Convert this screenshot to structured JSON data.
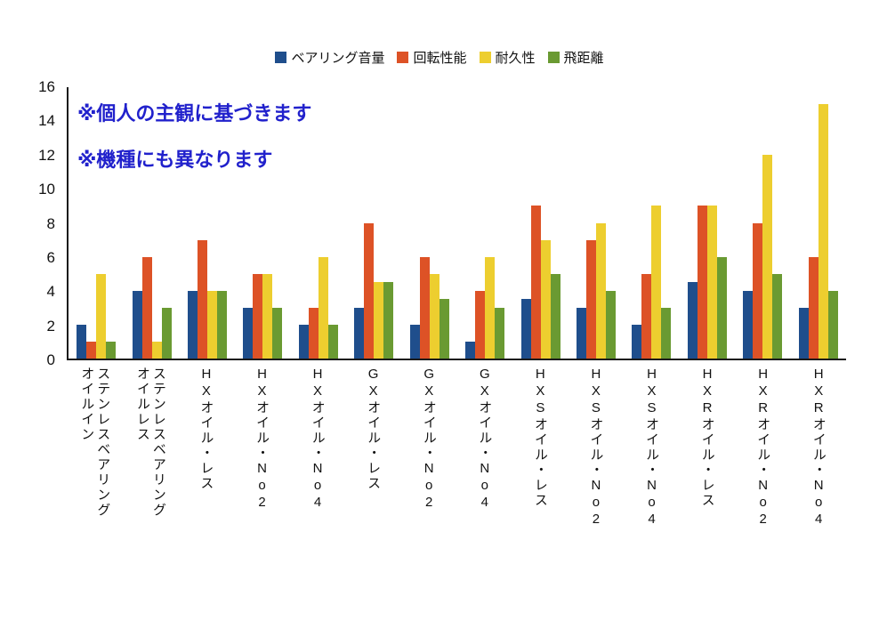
{
  "annotations": {
    "note1": "※個人の主観に基づきます",
    "note2": "※機種にも異なります"
  },
  "chart_data": {
    "type": "bar",
    "title": "",
    "xlabel": "",
    "ylabel": "",
    "ylim": [
      0,
      16
    ],
    "yticks": [
      0,
      2,
      4,
      6,
      8,
      10,
      12,
      14,
      16
    ],
    "grid": false,
    "legend_position": "top",
    "categories": [
      "オイルイン\nステンレスベアリング",
      "オイルレス\nステンレスベアリング",
      "HXオイル・レス",
      "HXオイル・No2",
      "HXオイル・No4",
      "GXオイル・レス",
      "GXオイル・No2",
      "GXオイル・No4",
      "HXSオイル・レス",
      "HXSオイル・No2",
      "HXSオイル・No4",
      "HXRオイル・レス",
      "HXRオイル・No2",
      "HXRオイル・No4"
    ],
    "series": [
      {
        "name": "ベアリング音量",
        "color": "#1f4e8c",
        "values": [
          2,
          4,
          4,
          3,
          2,
          3,
          2,
          1,
          3.5,
          3,
          2,
          4.5,
          4,
          3
        ]
      },
      {
        "name": "回転性能",
        "color": "#dd5226",
        "values": [
          1,
          6,
          7,
          5,
          3,
          8,
          6,
          4,
          9,
          7,
          5,
          9,
          8,
          6
        ]
      },
      {
        "name": "耐久性",
        "color": "#edce2f",
        "values": [
          5,
          1,
          4,
          5,
          6,
          4.5,
          5,
          6,
          7,
          8,
          9,
          9,
          12,
          15
        ]
      },
      {
        "name": "飛距離",
        "color": "#6a9a32",
        "values": [
          1,
          3,
          4,
          3,
          2,
          4.5,
          3.5,
          3,
          5,
          4,
          3,
          6,
          5,
          4
        ]
      }
    ]
  }
}
